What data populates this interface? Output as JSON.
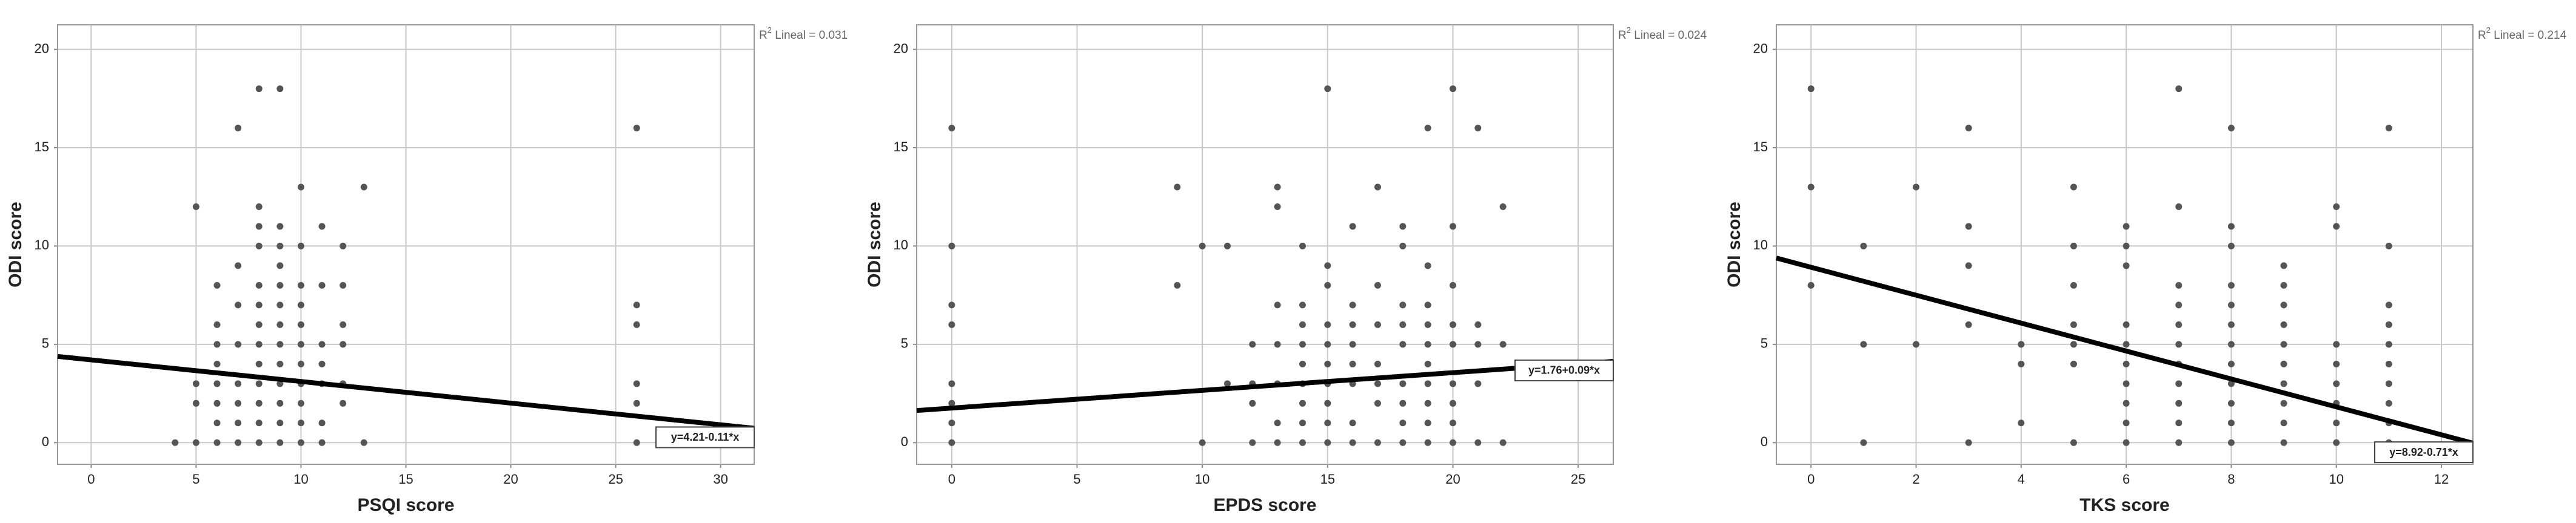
{
  "chart_data": [
    {
      "type": "scatter",
      "x_label": "PSQI score",
      "y_label": "ODI score",
      "color": "#555555",
      "x": [
        4,
        5,
        5,
        5,
        5,
        6,
        6,
        6,
        6,
        6,
        6,
        6,
        6,
        7,
        7,
        7,
        7,
        7,
        7,
        7,
        7,
        8,
        8,
        8,
        8,
        8,
        8,
        8,
        8,
        8,
        8,
        8,
        8,
        8,
        9,
        9,
        9,
        9,
        9,
        9,
        9,
        9,
        9,
        9,
        9,
        9,
        9,
        10,
        10,
        10,
        10,
        10,
        10,
        10,
        10,
        10,
        10,
        10,
        11,
        11,
        11,
        11,
        11,
        11,
        11,
        12,
        12,
        12,
        12,
        12,
        12,
        13,
        13,
        26,
        26,
        26,
        26,
        26,
        26
      ],
      "values": [
        0,
        0,
        2,
        3,
        12,
        0,
        1,
        2,
        3,
        4,
        5,
        6,
        8,
        0,
        1,
        2,
        3,
        5,
        7,
        9,
        16,
        0,
        1,
        2,
        3,
        4,
        5,
        6,
        7,
        8,
        10,
        11,
        12,
        18,
        0,
        1,
        2,
        3,
        4,
        5,
        6,
        7,
        8,
        9,
        10,
        11,
        18,
        0,
        1,
        2,
        3,
        4,
        5,
        6,
        7,
        8,
        10,
        13,
        0,
        1,
        3,
        4,
        5,
        8,
        11,
        2,
        3,
        5,
        6,
        8,
        10,
        0,
        13,
        0,
        2,
        3,
        6,
        7,
        16
      ],
      "xlim": [
        -1.6,
        31.6
      ],
      "ylim": [
        -1.1,
        21.25
      ],
      "xticks": [
        0,
        5,
        10,
        15,
        20,
        25,
        30
      ],
      "yticks": [
        0,
        5,
        10,
        15,
        20
      ],
      "grid": true,
      "fit": {
        "label": "y=4.21-0.11*x",
        "intercept": 4.21,
        "slope": -0.11
      },
      "r2": {
        "base": "R",
        "sup": "2",
        "text": " Lineal = 0.031"
      }
    },
    {
      "type": "scatter",
      "x_label": "EPDS score",
      "y_label": "ODI score",
      "color": "#555555",
      "x": [
        0,
        0,
        0,
        0,
        0,
        0,
        0,
        0,
        9,
        9,
        10,
        10,
        11,
        11,
        12,
        12,
        12,
        12,
        13,
        13,
        13,
        13,
        13,
        13,
        13,
        14,
        14,
        14,
        14,
        14,
        14,
        14,
        14,
        14,
        15,
        15,
        15,
        15,
        15,
        15,
        15,
        15,
        15,
        15,
        16,
        16,
        16,
        16,
        16,
        16,
        16,
        16,
        17,
        17,
        17,
        17,
        17,
        17,
        17,
        18,
        18,
        18,
        18,
        18,
        18,
        18,
        18,
        18,
        19,
        19,
        19,
        19,
        19,
        19,
        19,
        19,
        19,
        19,
        20,
        20,
        20,
        20,
        20,
        20,
        20,
        20,
        20,
        21,
        21,
        21,
        21,
        21,
        22,
        22,
        22
      ],
      "values": [
        0,
        1,
        2,
        3,
        6,
        7,
        10,
        16,
        8,
        13,
        0,
        10,
        3,
        10,
        0,
        2,
        3,
        5,
        0,
        1,
        3,
        5,
        7,
        12,
        13,
        0,
        1,
        2,
        3,
        4,
        5,
        6,
        7,
        10,
        0,
        1,
        2,
        3,
        4,
        5,
        6,
        8,
        9,
        18,
        0,
        1,
        3,
        4,
        5,
        6,
        7,
        11,
        0,
        2,
        3,
        4,
        6,
        8,
        13,
        0,
        1,
        2,
        3,
        5,
        6,
        7,
        10,
        11,
        0,
        1,
        2,
        3,
        4,
        5,
        6,
        7,
        9,
        16,
        0,
        1,
        2,
        3,
        5,
        6,
        8,
        11,
        18,
        0,
        3,
        5,
        6,
        16,
        0,
        5,
        12
      ],
      "xlim": [
        -1.4,
        26.4
      ],
      "ylim": [
        -1.1,
        21.25
      ],
      "xticks": [
        0,
        5,
        10,
        15,
        20,
        25
      ],
      "yticks": [
        0,
        5,
        10,
        15,
        20
      ],
      "grid": true,
      "fit": {
        "label": "y=1.76+0.09*x",
        "intercept": 1.76,
        "slope": 0.09
      },
      "r2": {
        "base": "R",
        "sup": "2",
        "text": " Lineal = 0.024"
      }
    },
    {
      "type": "scatter",
      "x_label": "TKS score",
      "y_label": "ODI score",
      "color": "#555555",
      "x": [
        0,
        0,
        0,
        1,
        1,
        1,
        2,
        2,
        3,
        3,
        3,
        3,
        3,
        4,
        4,
        4,
        5,
        5,
        5,
        5,
        5,
        5,
        5,
        6,
        6,
        6,
        6,
        6,
        6,
        6,
        6,
        6,
        6,
        7,
        7,
        7,
        7,
        7,
        7,
        7,
        7,
        7,
        7,
        7,
        8,
        8,
        8,
        8,
        8,
        8,
        8,
        8,
        8,
        8,
        8,
        8,
        9,
        9,
        9,
        9,
        9,
        9,
        9,
        9,
        9,
        9,
        10,
        10,
        10,
        10,
        10,
        10,
        10,
        10,
        11,
        11,
        11,
        11,
        11,
        11,
        11,
        11,
        11,
        11
      ],
      "values": [
        8,
        13,
        18,
        0,
        5,
        10,
        5,
        13,
        0,
        6,
        9,
        11,
        16,
        1,
        4,
        5,
        0,
        4,
        5,
        6,
        8,
        10,
        13,
        0,
        1,
        2,
        3,
        4,
        5,
        6,
        9,
        10,
        11,
        0,
        1,
        2,
        3,
        4,
        5,
        6,
        7,
        8,
        12,
        18,
        0,
        1,
        2,
        3,
        4,
        5,
        6,
        7,
        8,
        10,
        11,
        16,
        0,
        1,
        2,
        3,
        4,
        5,
        6,
        7,
        8,
        9,
        0,
        1,
        2,
        3,
        4,
        5,
        11,
        12,
        0,
        1,
        2,
        3,
        4,
        5,
        6,
        7,
        10,
        16
      ],
      "xlim": [
        -0.66,
        12.6
      ],
      "ylim": [
        -1.1,
        21.25
      ],
      "xticks": [
        0,
        2,
        4,
        6,
        8,
        10,
        12
      ],
      "yticks": [
        0,
        5,
        10,
        15,
        20
      ],
      "grid": true,
      "fit": {
        "label": "y=8.92-0.71*x",
        "intercept": 8.92,
        "slope": -0.71
      },
      "r2": {
        "base": "R",
        "sup": "2",
        "text": " Lineal = 0.214"
      }
    }
  ]
}
